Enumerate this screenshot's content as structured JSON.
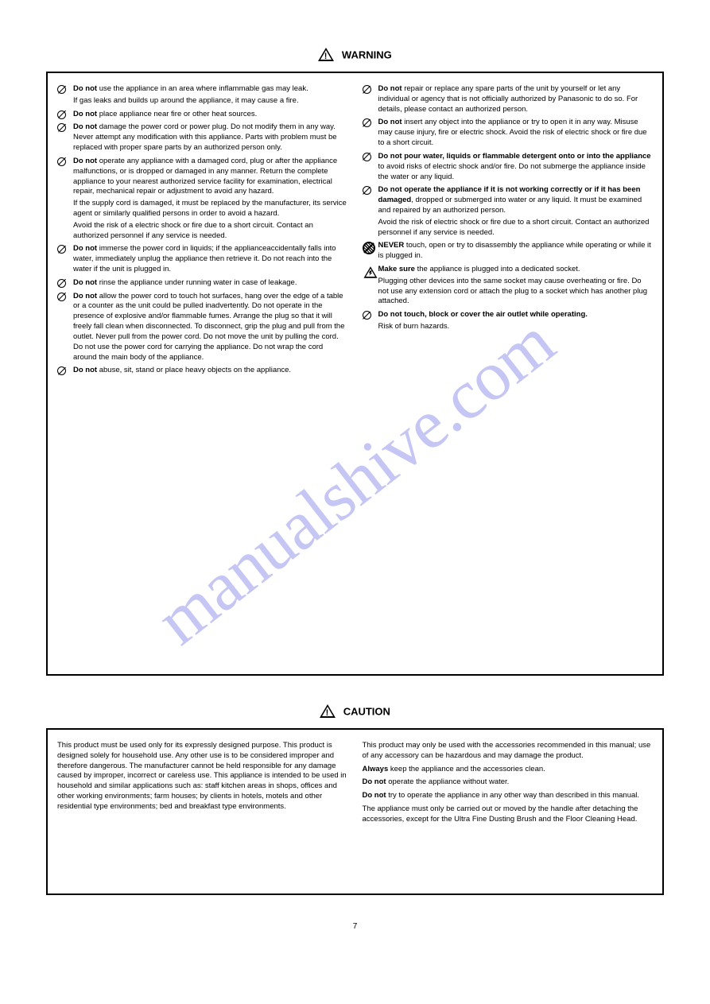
{
  "watermark": "manualshive.com",
  "page_number": "7",
  "section_warning": {
    "title": "WARNING",
    "left_items": [
      {
        "icon": "prohibit",
        "bold": "Do not",
        "text": " use the appliance in an area where inflammable gas may leak.",
        "note": "If gas leaks and builds up around the appliance, it may cause a fire."
      },
      {
        "icon": "prohibit",
        "bold": "Do not",
        "text": " place appliance near fire or other heat sources."
      },
      {
        "icon": "prohibit",
        "bold": "Do not",
        "text": " damage the power cord or power plug. Do not modify them in any way. Never attempt any modification with this appliance. Parts with problem must be replaced with proper spare parts by an authorized person only."
      },
      {
        "icon": "prohibit",
        "bold": "Do not",
        "text": " operate any appliance with a damaged cord, plug or after the appliance malfunctions, or is dropped or damaged in any manner. Return the complete appliance to your nearest authorized service facility for examination, electrical repair, mechanical repair or adjustment to avoid any hazard.",
        "extra": "If the supply cord is damaged, it must be replaced by the manufacturer, its service agent or similarly qualified persons in order to avoid a hazard.",
        "extra2": "Avoid the risk of a electric shock or fire due to a short circuit. Contact an authorized personnel if any service is needed."
      },
      {
        "icon": "prohibit",
        "bold": "Do not",
        "text": " immerse the power cord in liquids; if the applianceaccidentally falls into water, immediately unplug the appliance then retrieve it. Do not reach into the water if the unit is plugged in."
      },
      {
        "icon": "prohibit",
        "bold": "Do not",
        "text": " rinse the appliance under running water in case of leakage."
      },
      {
        "icon": "prohibit",
        "bold": "Do not",
        "text": " allow the power cord to touch hot surfaces, hang over the edge of a table or a counter as the unit could be pulled inadvertently. Do not operate in the presence of explosive and/or flammable fumes. Arrange the plug so that it will freely fall clean when disconnected. To disconnect, grip the plug and pull from the outlet. Never pull from the power cord. Do not move the unit by pulling the cord. Do not use the power cord for carrying the appliance. Do not wrap the cord around the main body of the appliance."
      },
      {
        "icon": "prohibit",
        "bold": "Do not",
        "text": " abuse, sit, stand or place heavy objects on the appliance."
      }
    ],
    "right_items": [
      {
        "icon": "prohibit",
        "bold": "Do not",
        "text": " repair or replace any spare parts of the unit by yourself or let any individual or agency that is not officially authorized by Panasonic to do so. For details, please contact an authorized person."
      },
      {
        "icon": "prohibit",
        "bold": "Do not",
        "text": " insert any object into the appliance or try to open it in any way. Misuse may cause injury, fire or electric shock. Avoid the risk of electric shock or fire due to a short circuit."
      },
      {
        "icon": "prohibit",
        "bold": "Do not pour water, liquids or flammable detergent onto or into the appliance",
        "text": " to avoid risks of electric shock and/or fire. Do not submerge the appliance inside the water or any liquid."
      },
      {
        "icon": "prohibit",
        "bold": "Do not operate the appliance if it is not working correctly or if it has been damaged",
        "text": ", dropped or submerged into water or any liquid. It must be examined and repaired by an authorized person.",
        "extra": "Avoid the risk of electric shock or fire due to a short circuit. Contact an authorized personnel if any service is needed."
      },
      {
        "icon": "prohibit-large",
        "bold": "NEVER",
        "text": " touch, open or try to disassembly the appliance while operating or while it is plugged in."
      },
      {
        "icon": "tri-bolt",
        "bold": "Make sure",
        "text": " the appliance is plugged into a dedicated socket.",
        "extra": "Plugging other devices into the same socket may cause overheating or fire. Do not use any extension cord or attach the plug to a socket which has another plug attached."
      },
      {
        "icon": "prohibit",
        "bold": "Do not touch, block or cover the air outlet while operating.",
        "text": "",
        "extra": "Risk of burn hazards."
      }
    ]
  },
  "section_caution": {
    "title": "CAUTION",
    "left_items": [
      {
        "plain": true,
        "text": "This product must be used only for its expressly designed purpose. This product is designed solely for household use. Any other use is to be considered improper and therefore dangerous. The manufacturer cannot be held responsible for any damage caused by improper, incorrect or careless use. This appliance is intended to be used in household and similar applications such as: staff kitchen areas in shops, offices and other working environments; farm houses; by clients in hotels, motels and other residential type environments; bed and breakfast type environments."
      }
    ],
    "right_items": [
      {
        "plain": true,
        "text": "This product may only be used with the accessories recommended in this manual; use of any accessory can be hazardous and may damage the product."
      },
      {
        "plain": true,
        "bold": "Always",
        "text": " keep the appliance and the accessories clean."
      },
      {
        "plain": true,
        "bold": "Do not",
        "text": " operate the appliance without water."
      },
      {
        "plain": true,
        "bold": "Do not",
        "text": " try to operate the appliance in any other way than described in this manual."
      },
      {
        "plain": true,
        "text": "The appliance must only be carried out or moved by the handle after detaching the accessories, except for the Ultra Fine Dusting Brush and the Floor Cleaning Head."
      }
    ]
  }
}
